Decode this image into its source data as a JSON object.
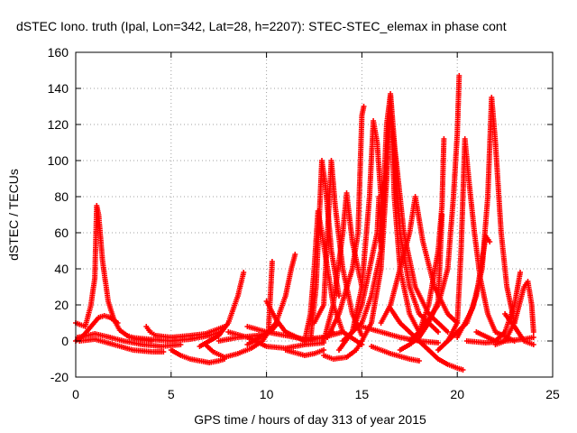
{
  "chart_data": {
    "type": "scatter",
    "title": "dSTEC Iono. truth (Ipal, Lon=342, Lat=28, h=2207): STEC-STEC_elemax in phase cont",
    "xlabel": "GPS time / hours of day 313 of year 2015",
    "ylabel": "dSTEC  / TECUs",
    "xlim": [
      0,
      25
    ],
    "ylim": [
      -20,
      160
    ],
    "xticks": [
      0,
      5,
      10,
      15,
      20,
      25
    ],
    "yticks": [
      -20,
      0,
      20,
      40,
      60,
      80,
      100,
      120,
      140,
      160
    ],
    "grid": true,
    "marker": "plus",
    "color": "#ff0000",
    "series": [
      {
        "points": [
          [
            0.0,
            10
          ],
          [
            0.5,
            8
          ],
          [
            0.8,
            20
          ],
          [
            1.0,
            35
          ],
          [
            1.1,
            75
          ],
          [
            1.2,
            70
          ],
          [
            1.4,
            45
          ],
          [
            1.7,
            22
          ],
          [
            2.0,
            12
          ],
          [
            2.3,
            6
          ],
          [
            2.7,
            3
          ],
          [
            3.2,
            1
          ],
          [
            4.0,
            0
          ]
        ]
      },
      {
        "points": [
          [
            0.0,
            0
          ],
          [
            0.4,
            3
          ],
          [
            0.8,
            8
          ],
          [
            1.2,
            13
          ],
          [
            1.5,
            14
          ],
          [
            1.8,
            13
          ],
          [
            2.2,
            10
          ]
        ]
      },
      {
        "points": [
          [
            0.1,
            2
          ],
          [
            0.6,
            3
          ],
          [
            1.0,
            4
          ],
          [
            1.8,
            2
          ],
          [
            2.5,
            0
          ],
          [
            3.5,
            -2
          ],
          [
            4.5,
            -3
          ],
          [
            5.5,
            -2
          ]
        ]
      },
      {
        "points": [
          [
            0.2,
            0
          ],
          [
            1.0,
            1
          ],
          [
            2.0,
            -2
          ],
          [
            3.0,
            -5
          ],
          [
            4.0,
            -6
          ],
          [
            4.6,
            -6
          ]
        ]
      },
      {
        "points": [
          [
            3.7,
            8
          ],
          [
            3.9,
            5
          ],
          [
            4.2,
            3
          ],
          [
            5.0,
            2
          ],
          [
            6.0,
            3
          ],
          [
            6.8,
            4
          ],
          [
            7.3,
            6
          ],
          [
            7.8,
            8
          ]
        ]
      },
      {
        "points": [
          [
            2.8,
            2
          ],
          [
            3.8,
            1
          ],
          [
            5.0,
            0
          ],
          [
            6.0,
            1
          ],
          [
            7.0,
            3
          ],
          [
            7.6,
            5
          ]
        ]
      },
      {
        "points": [
          [
            5.0,
            -5
          ],
          [
            5.5,
            -8
          ],
          [
            6.0,
            -10
          ],
          [
            6.5,
            -11
          ],
          [
            7.0,
            -12
          ],
          [
            7.5,
            -11
          ],
          [
            7.8,
            -10
          ]
        ]
      },
      {
        "points": [
          [
            6.5,
            -3
          ],
          [
            7.0,
            0
          ],
          [
            7.5,
            3
          ],
          [
            8.0,
            10
          ],
          [
            8.5,
            25
          ],
          [
            8.8,
            38
          ]
        ]
      },
      {
        "points": [
          [
            6.8,
            -2
          ],
          [
            7.2,
            -6
          ],
          [
            7.8,
            -9
          ],
          [
            8.5,
            -7
          ],
          [
            9.2,
            -4
          ],
          [
            9.8,
            0
          ],
          [
            10.1,
            5
          ],
          [
            10.3,
            44
          ]
        ]
      },
      {
        "points": [
          [
            7.5,
            0
          ],
          [
            8.5,
            2
          ],
          [
            9.5,
            3
          ],
          [
            10.2,
            5
          ],
          [
            10.6,
            10
          ]
        ]
      },
      {
        "points": [
          [
            8.0,
            5
          ],
          [
            9.0,
            2
          ],
          [
            10.0,
            -3
          ],
          [
            11.0,
            -4
          ],
          [
            12.0,
            -2
          ],
          [
            13.0,
            -1
          ]
        ]
      },
      {
        "points": [
          [
            9.0,
            -2
          ],
          [
            10.0,
            4
          ],
          [
            10.5,
            10
          ],
          [
            11.0,
            25
          ],
          [
            11.3,
            40
          ],
          [
            11.5,
            48
          ]
        ]
      },
      {
        "points": [
          [
            9.0,
            8
          ],
          [
            10.0,
            5
          ],
          [
            11.0,
            3
          ],
          [
            12.0,
            1
          ],
          [
            13.0,
            2
          ],
          [
            14.0,
            5
          ]
        ]
      },
      {
        "points": [
          [
            10.0,
            22
          ],
          [
            10.5,
            12
          ],
          [
            11.0,
            5
          ],
          [
            12.0,
            0
          ],
          [
            13.0,
            2
          ],
          [
            13.5,
            5
          ]
        ]
      },
      {
        "points": [
          [
            11.0,
            -5
          ],
          [
            12.0,
            -8
          ],
          [
            12.5,
            -7
          ],
          [
            13.0,
            -5
          ]
        ]
      },
      {
        "points": [
          [
            12.0,
            0
          ],
          [
            12.3,
            15
          ],
          [
            12.5,
            40
          ],
          [
            12.7,
            72
          ],
          [
            12.9,
            60
          ],
          [
            13.2,
            40
          ],
          [
            13.5,
            20
          ],
          [
            14.0,
            5
          ],
          [
            15.0,
            -2
          ]
        ]
      },
      {
        "points": [
          [
            12.3,
            0
          ],
          [
            12.6,
            30
          ],
          [
            12.9,
            100
          ],
          [
            13.1,
            85
          ],
          [
            13.4,
            50
          ],
          [
            13.8,
            25
          ]
        ]
      },
      {
        "points": [
          [
            12.5,
            10
          ],
          [
            13.0,
            20
          ],
          [
            13.4,
            100
          ],
          [
            13.6,
            75
          ],
          [
            14.0,
            40
          ],
          [
            14.5,
            15
          ],
          [
            15.0,
            3
          ]
        ]
      },
      {
        "points": [
          [
            13.0,
            -8
          ],
          [
            13.5,
            -10
          ],
          [
            14.2,
            -9
          ],
          [
            14.7,
            -5
          ],
          [
            15.0,
            0
          ]
        ]
      },
      {
        "points": [
          [
            13.0,
            0
          ],
          [
            13.5,
            20
          ],
          [
            14.0,
            60
          ],
          [
            14.2,
            82
          ],
          [
            14.5,
            55
          ],
          [
            15.0,
            30
          ]
        ]
      },
      {
        "points": [
          [
            13.2,
            2
          ],
          [
            13.8,
            15
          ],
          [
            14.5,
            40
          ],
          [
            14.8,
            60
          ],
          [
            15.0,
            125
          ],
          [
            15.1,
            130
          ]
        ]
      },
      {
        "points": [
          [
            14.0,
            0
          ],
          [
            14.5,
            5
          ],
          [
            15.0,
            20
          ],
          [
            15.5,
            45
          ],
          [
            15.8,
            60
          ],
          [
            15.9,
            80
          ],
          [
            16.0,
            52
          ]
        ]
      },
      {
        "points": [
          [
            13.8,
            -5
          ],
          [
            14.5,
            5
          ],
          [
            15.0,
            30
          ],
          [
            15.4,
            80
          ],
          [
            15.6,
            122
          ],
          [
            15.8,
            110
          ],
          [
            16.0,
            80
          ]
        ]
      },
      {
        "points": [
          [
            14.5,
            5
          ],
          [
            15.0,
            10
          ],
          [
            15.5,
            25
          ],
          [
            16.0,
            50
          ],
          [
            16.3,
            120
          ],
          [
            16.5,
            137
          ],
          [
            16.7,
            110
          ],
          [
            17.0,
            60
          ],
          [
            17.5,
            30
          ],
          [
            18.0,
            15
          ],
          [
            19.0,
            5
          ]
        ]
      },
      {
        "points": [
          [
            15.0,
            0
          ],
          [
            15.5,
            10
          ],
          [
            16.0,
            40
          ],
          [
            16.3,
            90
          ],
          [
            16.5,
            135
          ],
          [
            16.7,
            80
          ],
          [
            17.0,
            40
          ],
          [
            17.5,
            15
          ],
          [
            18.0,
            5
          ]
        ]
      },
      {
        "points": [
          [
            16.0,
            55
          ],
          [
            16.5,
            125
          ],
          [
            16.8,
            100
          ],
          [
            17.2,
            60
          ],
          [
            17.8,
            30
          ],
          [
            18.5,
            15
          ],
          [
            19.5,
            5
          ]
        ]
      },
      {
        "points": [
          [
            16.0,
            10
          ],
          [
            16.5,
            20
          ],
          [
            17.0,
            40
          ],
          [
            17.5,
            60
          ],
          [
            17.8,
            80
          ],
          [
            18.2,
            55
          ],
          [
            18.8,
            30
          ],
          [
            19.5,
            15
          ],
          [
            20.0,
            10
          ]
        ]
      },
      {
        "points": [
          [
            15.0,
            8
          ],
          [
            16.0,
            5
          ],
          [
            17.0,
            2
          ],
          [
            18.0,
            0
          ],
          [
            19.0,
            -1
          ]
        ]
      },
      {
        "points": [
          [
            15.5,
            -3
          ],
          [
            16.5,
            -7
          ],
          [
            17.5,
            -10
          ],
          [
            18.0,
            -11
          ]
        ]
      },
      {
        "points": [
          [
            16.5,
            18
          ],
          [
            17.0,
            10
          ],
          [
            17.5,
            5
          ],
          [
            18.0,
            0
          ],
          [
            18.5,
            -5
          ],
          [
            19.0,
            -10
          ],
          [
            19.5,
            -13
          ],
          [
            20.0,
            -15
          ],
          [
            20.3,
            -16
          ]
        ]
      },
      {
        "points": [
          [
            17.0,
            -5
          ],
          [
            17.5,
            -2
          ],
          [
            18.0,
            2
          ],
          [
            18.5,
            10
          ],
          [
            19.0,
            22
          ],
          [
            19.2,
            70
          ]
        ]
      },
      {
        "points": [
          [
            17.5,
            0
          ],
          [
            18.0,
            5
          ],
          [
            18.5,
            20
          ],
          [
            19.0,
            50
          ],
          [
            19.2,
            75
          ],
          [
            19.3,
            112
          ]
        ]
      },
      {
        "points": [
          [
            18.0,
            5
          ],
          [
            18.5,
            12
          ],
          [
            19.0,
            20
          ],
          [
            19.5,
            40
          ],
          [
            19.8,
            80
          ],
          [
            20.0,
            115
          ],
          [
            20.1,
            147
          ]
        ]
      },
      {
        "points": [
          [
            19.0,
            -5
          ],
          [
            19.5,
            0
          ],
          [
            20.0,
            10
          ],
          [
            20.2,
            50
          ],
          [
            20.4,
            112
          ],
          [
            20.6,
            90
          ],
          [
            20.9,
            60
          ],
          [
            21.2,
            35
          ],
          [
            21.6,
            15
          ],
          [
            22.0,
            5
          ],
          [
            23.0,
            0
          ]
        ]
      },
      {
        "points": [
          [
            19.5,
            0
          ],
          [
            20.0,
            5
          ],
          [
            20.5,
            10
          ],
          [
            21.0,
            25
          ],
          [
            21.5,
            58
          ],
          [
            21.7,
            55
          ]
        ]
      },
      {
        "points": [
          [
            20.0,
            2
          ],
          [
            20.8,
            18
          ],
          [
            21.3,
            40
          ],
          [
            21.6,
            80
          ],
          [
            21.8,
            135
          ],
          [
            22.0,
            110
          ],
          [
            22.3,
            60
          ],
          [
            22.6,
            30
          ],
          [
            23.0,
            10
          ]
        ]
      },
      {
        "points": [
          [
            20.5,
            0
          ],
          [
            21.5,
            -1
          ],
          [
            22.5,
            0
          ],
          [
            23.5,
            1
          ],
          [
            24.0,
            2
          ]
        ]
      },
      {
        "points": [
          [
            21.0,
            5
          ],
          [
            22.0,
            0
          ],
          [
            22.5,
            5
          ],
          [
            23.0,
            20
          ],
          [
            23.3,
            38
          ]
        ]
      },
      {
        "points": [
          [
            22.0,
            -2
          ],
          [
            22.5,
            0
          ],
          [
            23.0,
            10
          ],
          [
            23.5,
            30
          ],
          [
            23.7,
            33
          ],
          [
            23.9,
            20
          ],
          [
            24.0,
            5
          ]
        ]
      },
      {
        "points": [
          [
            22.5,
            15
          ],
          [
            23.0,
            8
          ],
          [
            23.5,
            0
          ],
          [
            24.0,
            -2
          ]
        ]
      }
    ]
  }
}
